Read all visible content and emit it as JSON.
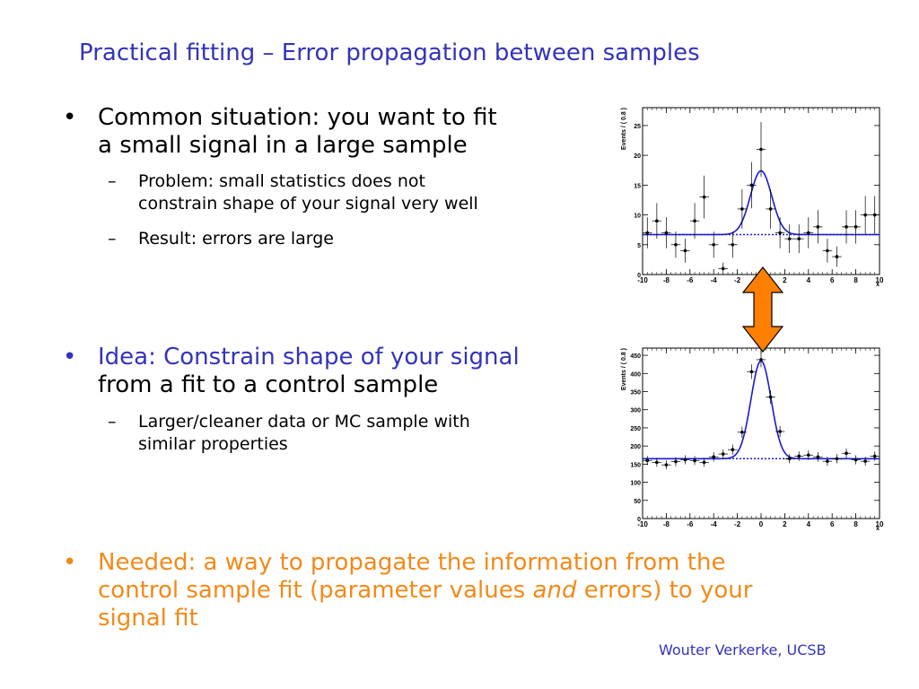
{
  "slide": {
    "title": "Practical fitting – Error propagation between samples",
    "bullets": [
      {
        "marker": "•",
        "line1": "Common situation: you want to fit",
        "line2": "a small signal in a large sample",
        "subs": [
          {
            "marker": "–",
            "line1": "Problem: small statistics does not",
            "line2": "constrain shape of your signal very well"
          },
          {
            "marker": "–",
            "line1": "Result: errors are large"
          }
        ]
      },
      {
        "marker": "•",
        "line1": "Idea: Constrain shape of your signal",
        "line2": "from a fit to a control sample",
        "subs": [
          {
            "marker": "–",
            "line1": "Larger/cleaner data or MC sample with",
            "line2": "similar properties"
          }
        ]
      },
      {
        "marker": "•",
        "line1": "Needed: a way to propagate the information from the",
        "line2a": "control sample fit (parameter values ",
        "line2_italic": "and",
        "line2b": " errors) to your",
        "line3": "signal fit"
      }
    ],
    "footer": "Wouter Verkerke, UCSB",
    "colors": {
      "title": "#3333bb",
      "highlight_blue": "#3333bb",
      "highlight_orange": "#f28a1a",
      "arrow": "#ff7f00",
      "fit_curve": "#1a1acc"
    }
  },
  "chart_data": [
    {
      "type": "scatter",
      "title": "",
      "xlabel": "x",
      "ylabel": "Events / ( 0.8 )",
      "xlim": [
        -10,
        10
      ],
      "ylim": [
        0,
        28
      ],
      "xticks": [
        "-10",
        "-8",
        "-6",
        "-4",
        "-2",
        "0",
        "2",
        "4",
        "6",
        "8",
        "10"
      ],
      "yticks": [
        "0",
        "5",
        "10",
        "15",
        "20",
        "25"
      ],
      "points": [
        {
          "x": -9.6,
          "y": 7,
          "err": 2.6
        },
        {
          "x": -8.8,
          "y": 9,
          "err": 3.0
        },
        {
          "x": -8.0,
          "y": 7,
          "err": 2.6
        },
        {
          "x": -7.2,
          "y": 5,
          "err": 2.2
        },
        {
          "x": -6.4,
          "y": 4,
          "err": 2.0
        },
        {
          "x": -5.6,
          "y": 9,
          "err": 3.0
        },
        {
          "x": -4.8,
          "y": 13,
          "err": 3.6
        },
        {
          "x": -4.0,
          "y": 5,
          "err": 2.2
        },
        {
          "x": -3.2,
          "y": 1,
          "err": 1.0
        },
        {
          "x": -2.4,
          "y": 5,
          "err": 2.2
        },
        {
          "x": -1.6,
          "y": 11,
          "err": 3.3
        },
        {
          "x": -0.8,
          "y": 15,
          "err": 3.9
        },
        {
          "x": 0.0,
          "y": 21,
          "err": 4.6
        },
        {
          "x": 0.8,
          "y": 11,
          "err": 3.3
        },
        {
          "x": 1.6,
          "y": 7,
          "err": 2.6
        },
        {
          "x": 2.4,
          "y": 6,
          "err": 2.4
        },
        {
          "x": 3.2,
          "y": 6,
          "err": 2.4
        },
        {
          "x": 4.0,
          "y": 7,
          "err": 2.6
        },
        {
          "x": 4.8,
          "y": 8,
          "err": 2.8
        },
        {
          "x": 5.6,
          "y": 4,
          "err": 2.0
        },
        {
          "x": 6.4,
          "y": 3,
          "err": 1.7
        },
        {
          "x": 7.2,
          "y": 8,
          "err": 2.8
        },
        {
          "x": 8.0,
          "y": 8,
          "err": 2.8
        },
        {
          "x": 8.8,
          "y": 10,
          "err": 3.2
        },
        {
          "x": 9.6,
          "y": 10,
          "err": 3.2
        }
      ],
      "fit": {
        "background": 6.7,
        "peak_amplitude": 10.7,
        "mean": 0.0,
        "sigma": 0.9
      },
      "grid": false
    },
    {
      "type": "scatter",
      "title": "",
      "xlabel": "x",
      "ylabel": "Events / ( 0.8 )",
      "xlim": [
        -10,
        10
      ],
      "ylim": [
        0,
        470
      ],
      "xticks": [
        "-10",
        "-8",
        "-6",
        "-4",
        "-2",
        "0",
        "2",
        "4",
        "6",
        "8",
        "10"
      ],
      "yticks": [
        "0",
        "50",
        "100",
        "150",
        "200",
        "250",
        "300",
        "350",
        "400",
        "450"
      ],
      "points": [
        {
          "x": -9.6,
          "y": 160,
          "err": 12.6
        },
        {
          "x": -8.8,
          "y": 155,
          "err": 12.4
        },
        {
          "x": -8.0,
          "y": 148,
          "err": 12.2
        },
        {
          "x": -7.2,
          "y": 157,
          "err": 12.5
        },
        {
          "x": -6.4,
          "y": 162,
          "err": 12.7
        },
        {
          "x": -5.6,
          "y": 160,
          "err": 12.6
        },
        {
          "x": -4.8,
          "y": 155,
          "err": 12.4
        },
        {
          "x": -4.0,
          "y": 170,
          "err": 13.0
        },
        {
          "x": -3.2,
          "y": 178,
          "err": 13.3
        },
        {
          "x": -2.4,
          "y": 190,
          "err": 13.8
        },
        {
          "x": -1.6,
          "y": 238,
          "err": 15.4
        },
        {
          "x": -0.8,
          "y": 405,
          "err": 20.1
        },
        {
          "x": 0.0,
          "y": 438,
          "err": 20.9
        },
        {
          "x": 0.8,
          "y": 335,
          "err": 18.3
        },
        {
          "x": 1.6,
          "y": 240,
          "err": 15.5
        },
        {
          "x": 2.4,
          "y": 165,
          "err": 12.8
        },
        {
          "x": 3.2,
          "y": 172,
          "err": 13.1
        },
        {
          "x": 4.0,
          "y": 175,
          "err": 13.2
        },
        {
          "x": 4.8,
          "y": 170,
          "err": 13.0
        },
        {
          "x": 5.6,
          "y": 158,
          "err": 12.6
        },
        {
          "x": 6.4,
          "y": 165,
          "err": 12.8
        },
        {
          "x": 7.2,
          "y": 180,
          "err": 13.4
        },
        {
          "x": 8.0,
          "y": 162,
          "err": 12.7
        },
        {
          "x": 8.8,
          "y": 158,
          "err": 12.6
        },
        {
          "x": 9.6,
          "y": 172,
          "err": 13.1
        }
      ],
      "fit": {
        "background": 165,
        "peak_amplitude": 270,
        "mean": 0.0,
        "sigma": 0.85
      },
      "grid": false
    }
  ]
}
